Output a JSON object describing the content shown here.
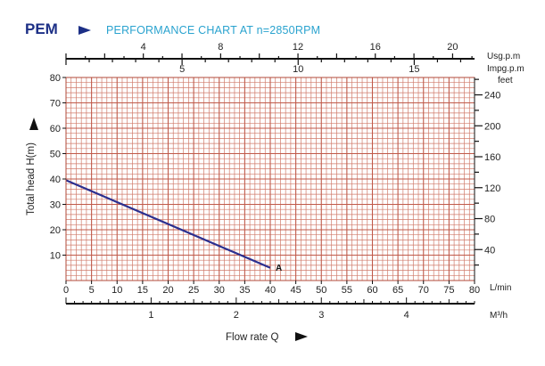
{
  "header": {
    "brand": "PEM",
    "title": "PERFORMANCE CHART AT n=2850RPM",
    "accent_brand": "#1c2f86",
    "accent_title": "#2aa3cf",
    "arrow_color": "#1c2f86"
  },
  "chart_data": {
    "type": "line",
    "title": "PERFORMANCE CHART AT n=2850RPM",
    "xlabel": "Flow rate Q",
    "ylabel": "Total head H(m)",
    "xlim": [
      0,
      80
    ],
    "ylim": [
      0,
      80
    ],
    "x_unit": "L/min",
    "x_ticks": [
      0,
      5,
      10,
      15,
      20,
      25,
      30,
      35,
      40,
      45,
      50,
      55,
      60,
      65,
      70,
      75,
      80
    ],
    "y_ticks": [
      10,
      20,
      30,
      40,
      50,
      60,
      70,
      80
    ],
    "grid": true,
    "grid_color": "#d07a6a",
    "series": [
      {
        "name": "",
        "curve_label": "A",
        "color": "#2b2f8f",
        "x": [
          0,
          40
        ],
        "y": [
          39.5,
          5
        ]
      }
    ],
    "secondary_axes": {
      "usgpm": {
        "unit": "Usg.p.m",
        "ticks": [
          4,
          8,
          12,
          16,
          20
        ]
      },
      "impgpm": {
        "unit": "Impg.p.m",
        "ticks": [
          5,
          10,
          15
        ]
      },
      "feet": {
        "unit": "feet",
        "ticks": [
          40,
          80,
          120,
          160,
          200,
          240
        ]
      },
      "m3h": {
        "unit": "M³/h",
        "ticks": [
          1,
          2,
          3,
          4
        ]
      }
    }
  }
}
